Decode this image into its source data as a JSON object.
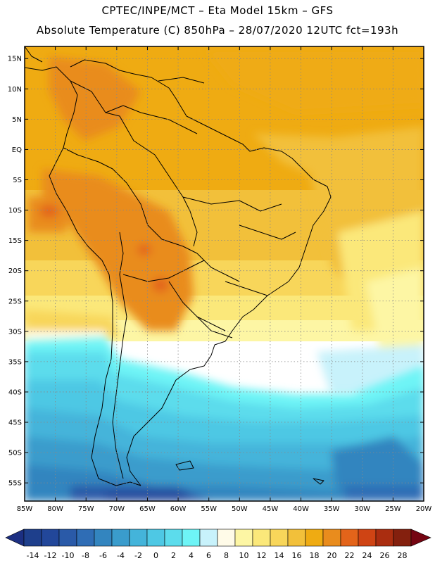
{
  "header": {
    "line1": "CPTEC/INPE/MCT –  Eta Model 15km – GFS",
    "line2": "Absolute Temperature (C) 850hPa – 28/07/2020 12UTC fct=193h"
  },
  "map": {
    "lon_range": [
      -85,
      -20
    ],
    "lat_range": [
      -58,
      17
    ],
    "lat_labels": [
      "15N",
      "10N",
      "5N",
      "EQ",
      "5S",
      "10S",
      "15S",
      "20S",
      "25S",
      "30S",
      "35S",
      "40S",
      "45S",
      "50S",
      "55S"
    ],
    "lat_values": [
      15,
      10,
      5,
      0,
      -5,
      -10,
      -15,
      -20,
      -25,
      -30,
      -35,
      -40,
      -45,
      -50,
      -55
    ],
    "lon_labels": [
      "85W",
      "80W",
      "75W",
      "70W",
      "65W",
      "60W",
      "55W",
      "50W",
      "45W",
      "40W",
      "35W",
      "30W",
      "25W",
      "20W"
    ],
    "lon_values": [
      -85,
      -80,
      -75,
      -70,
      -65,
      -60,
      -55,
      -50,
      -45,
      -40,
      -35,
      -30,
      -25,
      -20
    ],
    "field": "Absolute Temperature (C) at 850hPa"
  },
  "colorbar": {
    "labels": [
      "-14",
      "-12",
      "-10",
      "-8",
      "-6",
      "-4",
      "-2",
      "0",
      "2",
      "4",
      "6",
      "8",
      "10",
      "12",
      "14",
      "16",
      "18",
      "20",
      "22",
      "24",
      "26",
      "28"
    ],
    "colors": [
      "#1e3f8c",
      "#22479a",
      "#2a5aa8",
      "#2f6db5",
      "#3385bf",
      "#3a9ccc",
      "#44b4da",
      "#4ec8e4",
      "#5cdcec",
      "#6ef4f6",
      "#c8f2fb",
      "#fffbe8",
      "#fdf6a4",
      "#fbe87a",
      "#f8d65a",
      "#f2c03a",
      "#efab12",
      "#e98c1d",
      "#e3641a",
      "#cf4414",
      "#aa2d10",
      "#84200e"
    ],
    "under_color": "#1c2f82",
    "over_color": "#750512"
  }
}
